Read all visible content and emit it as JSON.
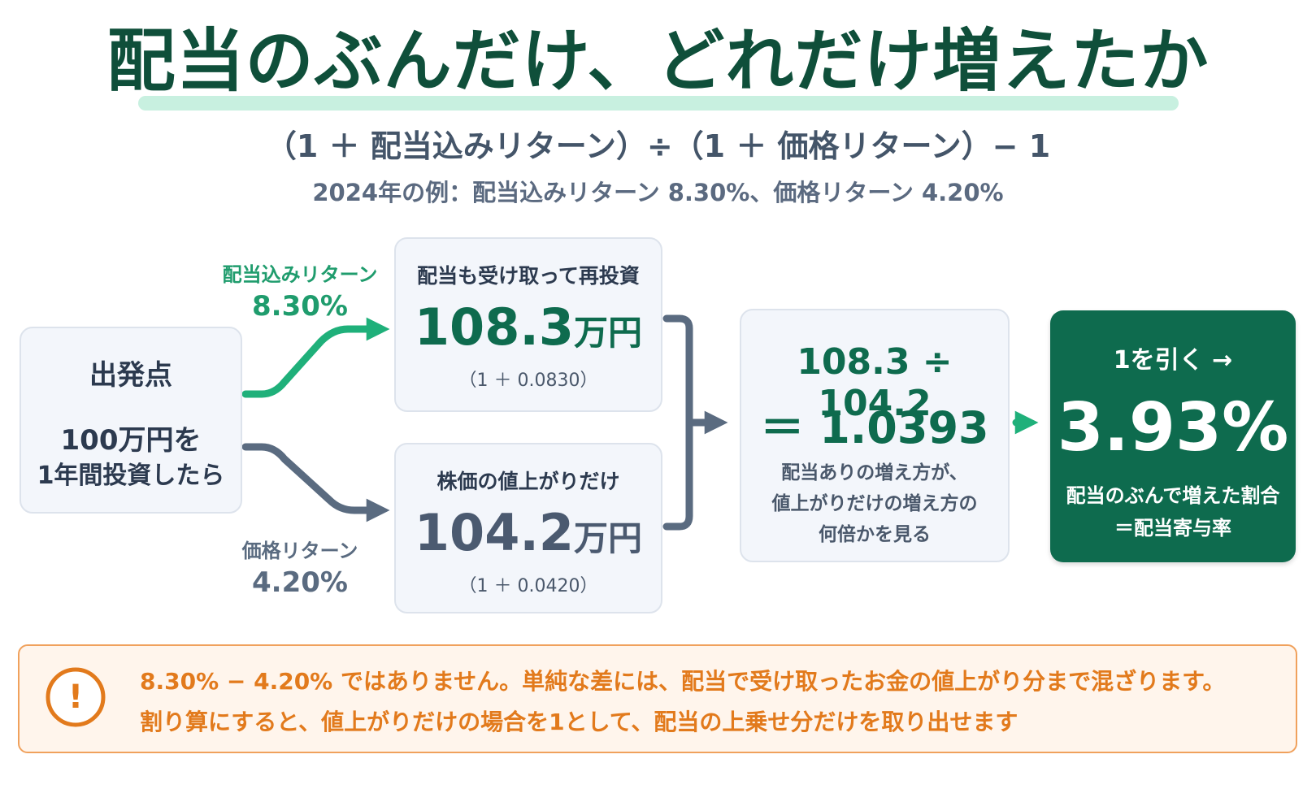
{
  "title": "配当のぶんだけ、どれだけ増えたか",
  "formula": "（1 ＋ 配当込みリターン）÷（1 ＋ 価格リターン）− 1",
  "example": "2024年の例：配当込みリターン 8.30%、価格リターン 4.20%",
  "start": {
    "title": "出発点",
    "desc_line1": "100万円を",
    "desc_line2": "1年間投資したら"
  },
  "total_return_label": {
    "name": "配当込みリターン",
    "value": "8.30%"
  },
  "price_return_label": {
    "name": "価格リターン",
    "value": "4.20%"
  },
  "total_box": {
    "heading": "配当も受け取って再投資",
    "amount": "108.3",
    "unit": "万円",
    "factor": "（1 ＋ 0.0830）"
  },
  "price_box": {
    "heading": "株価の値上がりだけ",
    "amount": "104.2",
    "unit": "万円",
    "factor": "（1 ＋ 0.0420）"
  },
  "calc_box": {
    "line1": "108.3 ÷ 104.2",
    "line2": "＝ 1.0393",
    "note_line1": "配当ありの増え方が、",
    "note_line2": "値上がりだけの増え方の",
    "note_line3": "何倍かを見る"
  },
  "result_box": {
    "heading": "1を引く →",
    "value": "3.93%",
    "note_line1": "配当のぶんで増えた割合",
    "note_line2": "＝配当寄与率"
  },
  "warning": {
    "icon_symbol": "!",
    "line1": "8.30% − 4.20% ではありません。単純な差には、配当で受け取ったお金の値上がり分まで混ざります。",
    "line2": "割り算にすると、値上がりだけの場合を1として、配当の上乗せ分だけを取り出せます"
  },
  "colors": {
    "dark_green": "#0e6b4e",
    "accent_green": "#1fb07a",
    "slate": "#5a6b80",
    "orange": "#e27a1c"
  }
}
